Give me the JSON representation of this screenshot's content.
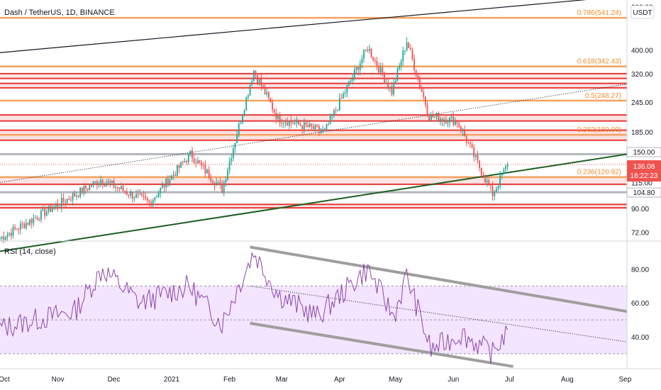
{
  "header": {
    "symbol_title": "Dash / TetherUS, 1D, BINANCE",
    "currency_badge": "USDT"
  },
  "rsi": {
    "title": "RSI (14, close)",
    "ticks": [
      "80.00",
      "60.00",
      "40.00"
    ],
    "band_upper": 70,
    "band_lower": 30,
    "mid": 50
  },
  "price_axis": {
    "ticks": [
      "600.00",
      "400.00",
      "320.00",
      "245.00",
      "185.00",
      "150.00",
      "115.00",
      "90.00",
      "72.00"
    ],
    "last_price": "136.08",
    "countdown": "16:22:23",
    "level_150": "150.00",
    "level_104": "104.80"
  },
  "time_axis": {
    "labels": [
      "Oct",
      "Nov",
      "Dec",
      "2021",
      "Feb",
      "Mar",
      "Apr",
      "May",
      "Jun",
      "Jul",
      "Aug",
      "Sep"
    ]
  },
  "fib_levels": [
    {
      "label": "0.786(541.24)",
      "value": 541.24
    },
    {
      "label": "0.618(342.43)",
      "value": 342.43
    },
    {
      "label": "0.5(248.27)",
      "value": 248.27
    },
    {
      "label": "0.382(180.00)",
      "value": 180.0
    },
    {
      "label": "0.236(120.92)",
      "value": 120.92
    }
  ],
  "colors": {
    "up": "#26a69a",
    "down": "#ef5350",
    "fib": "#f4a261",
    "red_line": "#e53935",
    "red_zone": "#fde3e3",
    "grey_line": "#b2b5be",
    "rsi_line": "#8e44ad",
    "rsi_band": "#f3e5ff",
    "last_price_bg": "#ef5350"
  },
  "chart_data": [
    {
      "type": "candlestick",
      "title": "Dash / TetherUS, 1D, BINANCE",
      "yscale": "log",
      "ylim": [
        68,
        640
      ],
      "xlim": [
        "2020-10-01",
        "2021-09-02"
      ],
      "key_points": [
        {
          "date": "2020-10-01",
          "price": 68
        },
        {
          "date": "2020-11-24",
          "price": 118
        },
        {
          "date": "2020-12-20",
          "price": 95
        },
        {
          "date": "2021-01-11",
          "price": 150
        },
        {
          "date": "2021-01-28",
          "price": 108
        },
        {
          "date": "2021-02-14",
          "price": 330
        },
        {
          "date": "2021-02-27",
          "price": 210
        },
        {
          "date": "2021-03-24",
          "price": 185
        },
        {
          "date": "2021-04-16",
          "price": 410
        },
        {
          "date": "2021-04-29",
          "price": 270
        },
        {
          "date": "2021-05-07",
          "price": 435
        },
        {
          "date": "2021-05-19",
          "price": 215
        },
        {
          "date": "2021-06-03",
          "price": 205
        },
        {
          "date": "2021-06-22",
          "price": 103
        },
        {
          "date": "2021-06-30",
          "price": 136.08
        }
      ],
      "horizontal_levels": {
        "grey": [
          150.0,
          104.8
        ],
        "red": [
          90.5,
          93.5,
          113,
          121,
          171,
          188,
          205,
          217,
          280,
          292,
          306,
          320
        ]
      }
    },
    {
      "type": "line",
      "title": "RSI (14, close)",
      "ylim": [
        22,
        94
      ],
      "series": [
        {
          "name": "RSI (14, close)",
          "x": [
            "2020-10-01",
            "2020-10-20",
            "2020-11-10",
            "2020-11-25",
            "2020-12-15",
            "2021-01-10",
            "2021-01-28",
            "2021-02-14",
            "2021-02-27",
            "2021-03-20",
            "2021-04-16",
            "2021-04-30",
            "2021-05-07",
            "2021-05-20",
            "2021-06-05",
            "2021-06-22",
            "2021-06-30"
          ],
          "values": [
            45,
            50,
            55,
            80,
            60,
            70,
            48,
            90,
            65,
            52,
            80,
            52,
            76,
            32,
            42,
            30,
            44
          ]
        }
      ]
    }
  ]
}
